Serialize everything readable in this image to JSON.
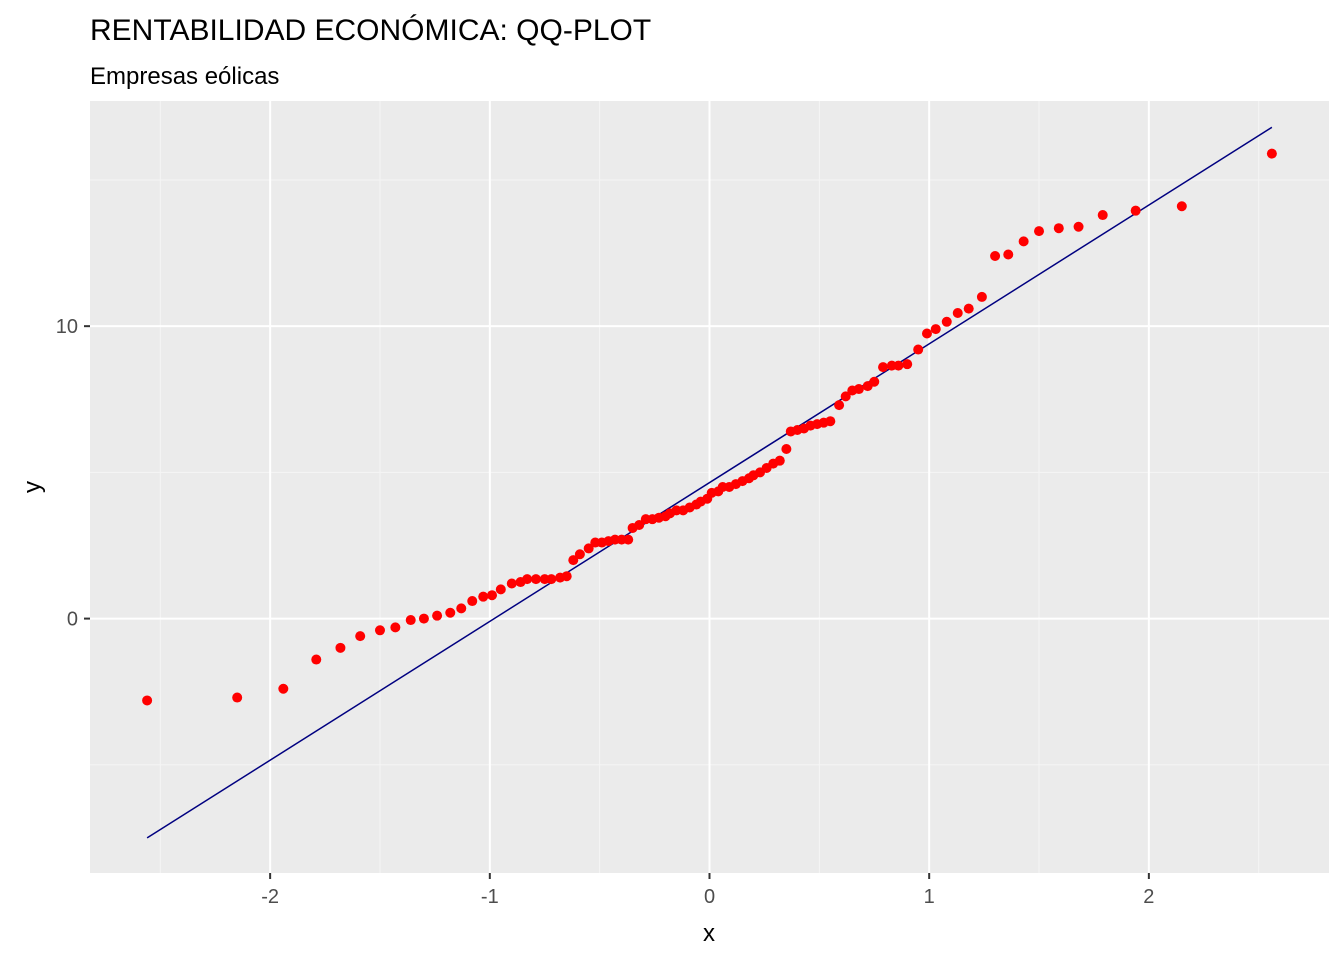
{
  "chart_data": {
    "type": "scatter",
    "title": "RENTABILIDAD ECONÓMICA: QQ-PLOT",
    "subtitle": "Empresas eólicas",
    "xlabel": "x",
    "ylabel": "y",
    "xlim": [
      -2.82,
      2.82
    ],
    "ylim": [
      -8.7,
      17.7
    ],
    "x_ticks": [
      -2,
      -1,
      0,
      1,
      2
    ],
    "x_tick_labels": [
      "-2",
      "-1",
      "0",
      "1",
      "2"
    ],
    "y_ticks": [
      0,
      10
    ],
    "y_tick_labels": [
      "0",
      "10"
    ],
    "grid": true,
    "legend": "none",
    "colors": {
      "panel_background": "#ebebeb",
      "grid_major": "#ffffff",
      "grid_minor": "#f5f5f5",
      "points": "#ff0000",
      "reference_line": "#000080"
    },
    "reference_line": {
      "x": [
        -2.56,
        2.56
      ],
      "y": [
        -7.5,
        16.8
      ]
    },
    "points": {
      "x": [
        -2.56,
        -2.15,
        -1.94,
        -1.79,
        -1.68,
        -1.59,
        -1.5,
        -1.43,
        -1.36,
        -1.3,
        -1.24,
        -1.18,
        -1.13,
        -1.08,
        -1.03,
        -0.99,
        -0.95,
        -0.9,
        -0.86,
        -0.83,
        -0.79,
        -0.75,
        -0.72,
        -0.68,
        -0.65,
        -0.62,
        -0.59,
        -0.55,
        -0.52,
        -0.49,
        -0.46,
        -0.43,
        -0.4,
        -0.37,
        -0.35,
        -0.32,
        -0.29,
        -0.26,
        -0.23,
        -0.2,
        -0.18,
        -0.15,
        -0.12,
        -0.09,
        -0.06,
        -0.04,
        -0.01,
        0.01,
        0.04,
        0.06,
        0.09,
        0.12,
        0.15,
        0.18,
        0.2,
        0.23,
        0.26,
        0.29,
        0.32,
        0.35,
        0.37,
        0.4,
        0.43,
        0.46,
        0.49,
        0.52,
        0.55,
        0.59,
        0.62,
        0.65,
        0.68,
        0.72,
        0.75,
        0.79,
        0.83,
        0.86,
        0.9,
        0.95,
        0.99,
        1.03,
        1.08,
        1.13,
        1.18,
        1.24,
        1.3,
        1.36,
        1.43,
        1.5,
        1.59,
        1.68,
        1.79,
        1.94,
        2.15,
        2.56
      ],
      "y": [
        -2.8,
        -2.7,
        -2.4,
        -1.4,
        -1.0,
        -0.6,
        -0.4,
        -0.3,
        -0.05,
        0.0,
        0.1,
        0.2,
        0.35,
        0.6,
        0.75,
        0.8,
        1.0,
        1.2,
        1.25,
        1.35,
        1.35,
        1.35,
        1.35,
        1.4,
        1.45,
        2.0,
        2.2,
        2.4,
        2.6,
        2.6,
        2.65,
        2.7,
        2.7,
        2.7,
        3.1,
        3.2,
        3.4,
        3.4,
        3.45,
        3.5,
        3.6,
        3.7,
        3.7,
        3.8,
        3.9,
        4.0,
        4.1,
        4.3,
        4.35,
        4.5,
        4.5,
        4.6,
        4.7,
        4.8,
        4.9,
        5.0,
        5.15,
        5.3,
        5.4,
        5.8,
        6.4,
        6.45,
        6.5,
        6.6,
        6.65,
        6.7,
        6.75,
        7.3,
        7.6,
        7.8,
        7.85,
        7.95,
        8.1,
        8.6,
        8.65,
        8.65,
        8.7,
        9.2,
        9.75,
        9.9,
        10.15,
        10.45,
        10.6,
        11.0,
        12.4,
        12.45,
        12.9,
        13.25,
        13.35,
        13.4,
        13.8,
        13.95,
        14.1,
        15.9
      ]
    }
  }
}
